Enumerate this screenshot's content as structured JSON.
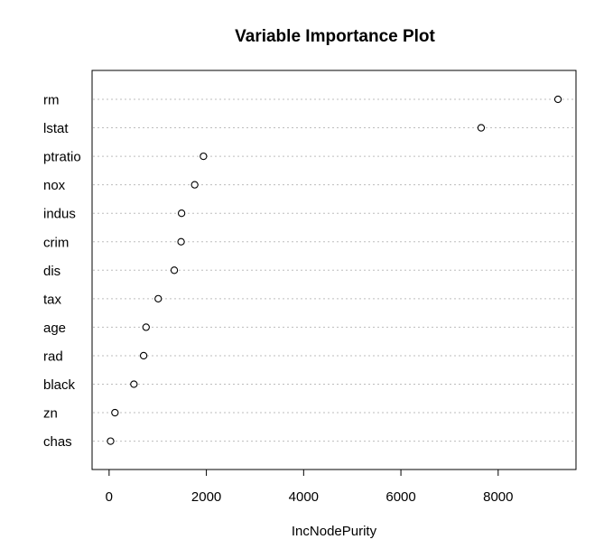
{
  "chart_data": {
    "type": "scatter",
    "title": "Variable Importance Plot",
    "xlabel": "IncNodePurity",
    "ylabel": "",
    "xlim": [
      -350,
      9600
    ],
    "xticks": [
      0,
      2000,
      4000,
      6000,
      8000
    ],
    "xtick_labels": [
      "0",
      "2000",
      "4000",
      "6000",
      "8000"
    ],
    "grid": "horizontal dotted",
    "marker": "open circle",
    "categories": [
      "rm",
      "lstat",
      "ptratio",
      "nox",
      "indus",
      "crim",
      "dis",
      "tax",
      "age",
      "rad",
      "black",
      "zn",
      "chas"
    ],
    "values": [
      9230,
      7650,
      1940,
      1760,
      1490,
      1480,
      1340,
      1010,
      760,
      710,
      510,
      120,
      30
    ]
  }
}
